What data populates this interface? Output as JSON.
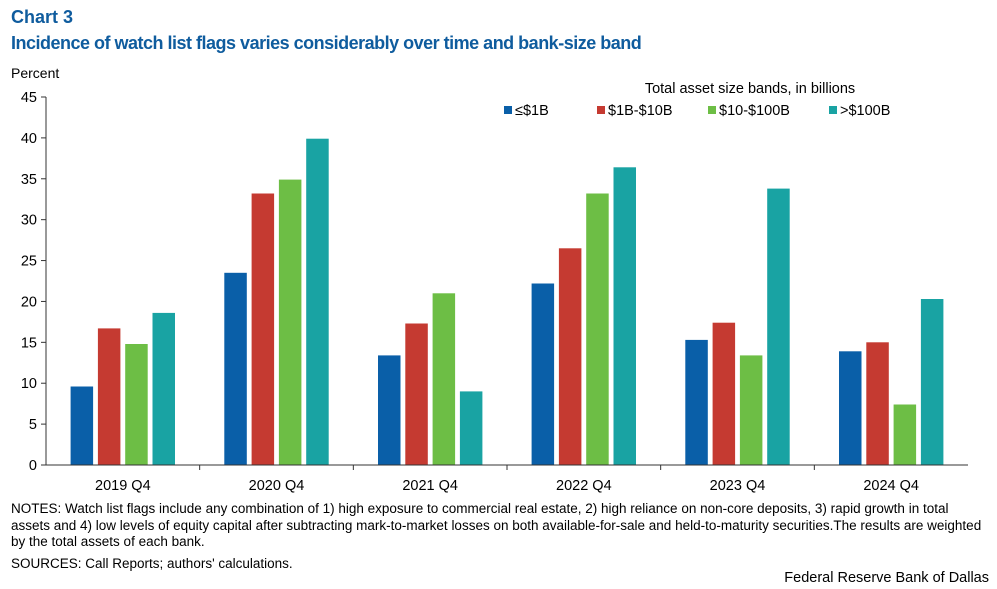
{
  "header": {
    "chart_label": "Chart 3",
    "title": "Incidence of watch list flags varies considerably over time and bank-size band"
  },
  "notes": "NOTES: Watch list flags include any combination of 1) high exposure to commercial real estate, 2) high reliance on non-core deposits, 3) rapid growth in total assets and 4) low levels of equity capital after subtracting mark-to-market losses on both available-for-sale and held-to-maturity securities.The results are weighted by the total assets of each bank.",
  "sources": "SOURCES: Call Reports; authors' calculations.",
  "credit": "Federal Reserve Bank of Dallas",
  "colors": {
    "series_1": "#0A5FA8",
    "series_2": "#C53A31",
    "series_3": "#6DBE45",
    "series_4": "#19A3A3",
    "axis": "#333333"
  },
  "chart_data": {
    "type": "bar",
    "title": "Incidence of watch list flags varies considerably over time and bank-size band",
    "ylabel": "Percent",
    "xlabel": "",
    "ylim": [
      0,
      45
    ],
    "yticks": [
      0,
      5,
      10,
      15,
      20,
      25,
      30,
      35,
      40,
      45
    ],
    "grid": false,
    "legend_title": "Total asset size bands, in billions",
    "legend_position": "top-right",
    "categories": [
      "2019 Q4",
      "2020 Q4",
      "2021 Q4",
      "2022 Q4",
      "2023 Q4",
      "2024 Q4"
    ],
    "series": [
      {
        "name": "≤$1B",
        "values": [
          9.6,
          23.5,
          13.4,
          22.2,
          15.3,
          13.9
        ]
      },
      {
        "name": "$1B-$10B",
        "values": [
          16.7,
          33.2,
          17.3,
          26.5,
          17.4,
          15.0
        ]
      },
      {
        "name": "$10-$100B",
        "values": [
          14.8,
          34.9,
          21.0,
          33.2,
          13.4,
          7.4
        ]
      },
      {
        "name": ">$100B",
        "values": [
          18.6,
          39.9,
          9.0,
          36.4,
          33.8,
          20.3
        ]
      }
    ]
  }
}
